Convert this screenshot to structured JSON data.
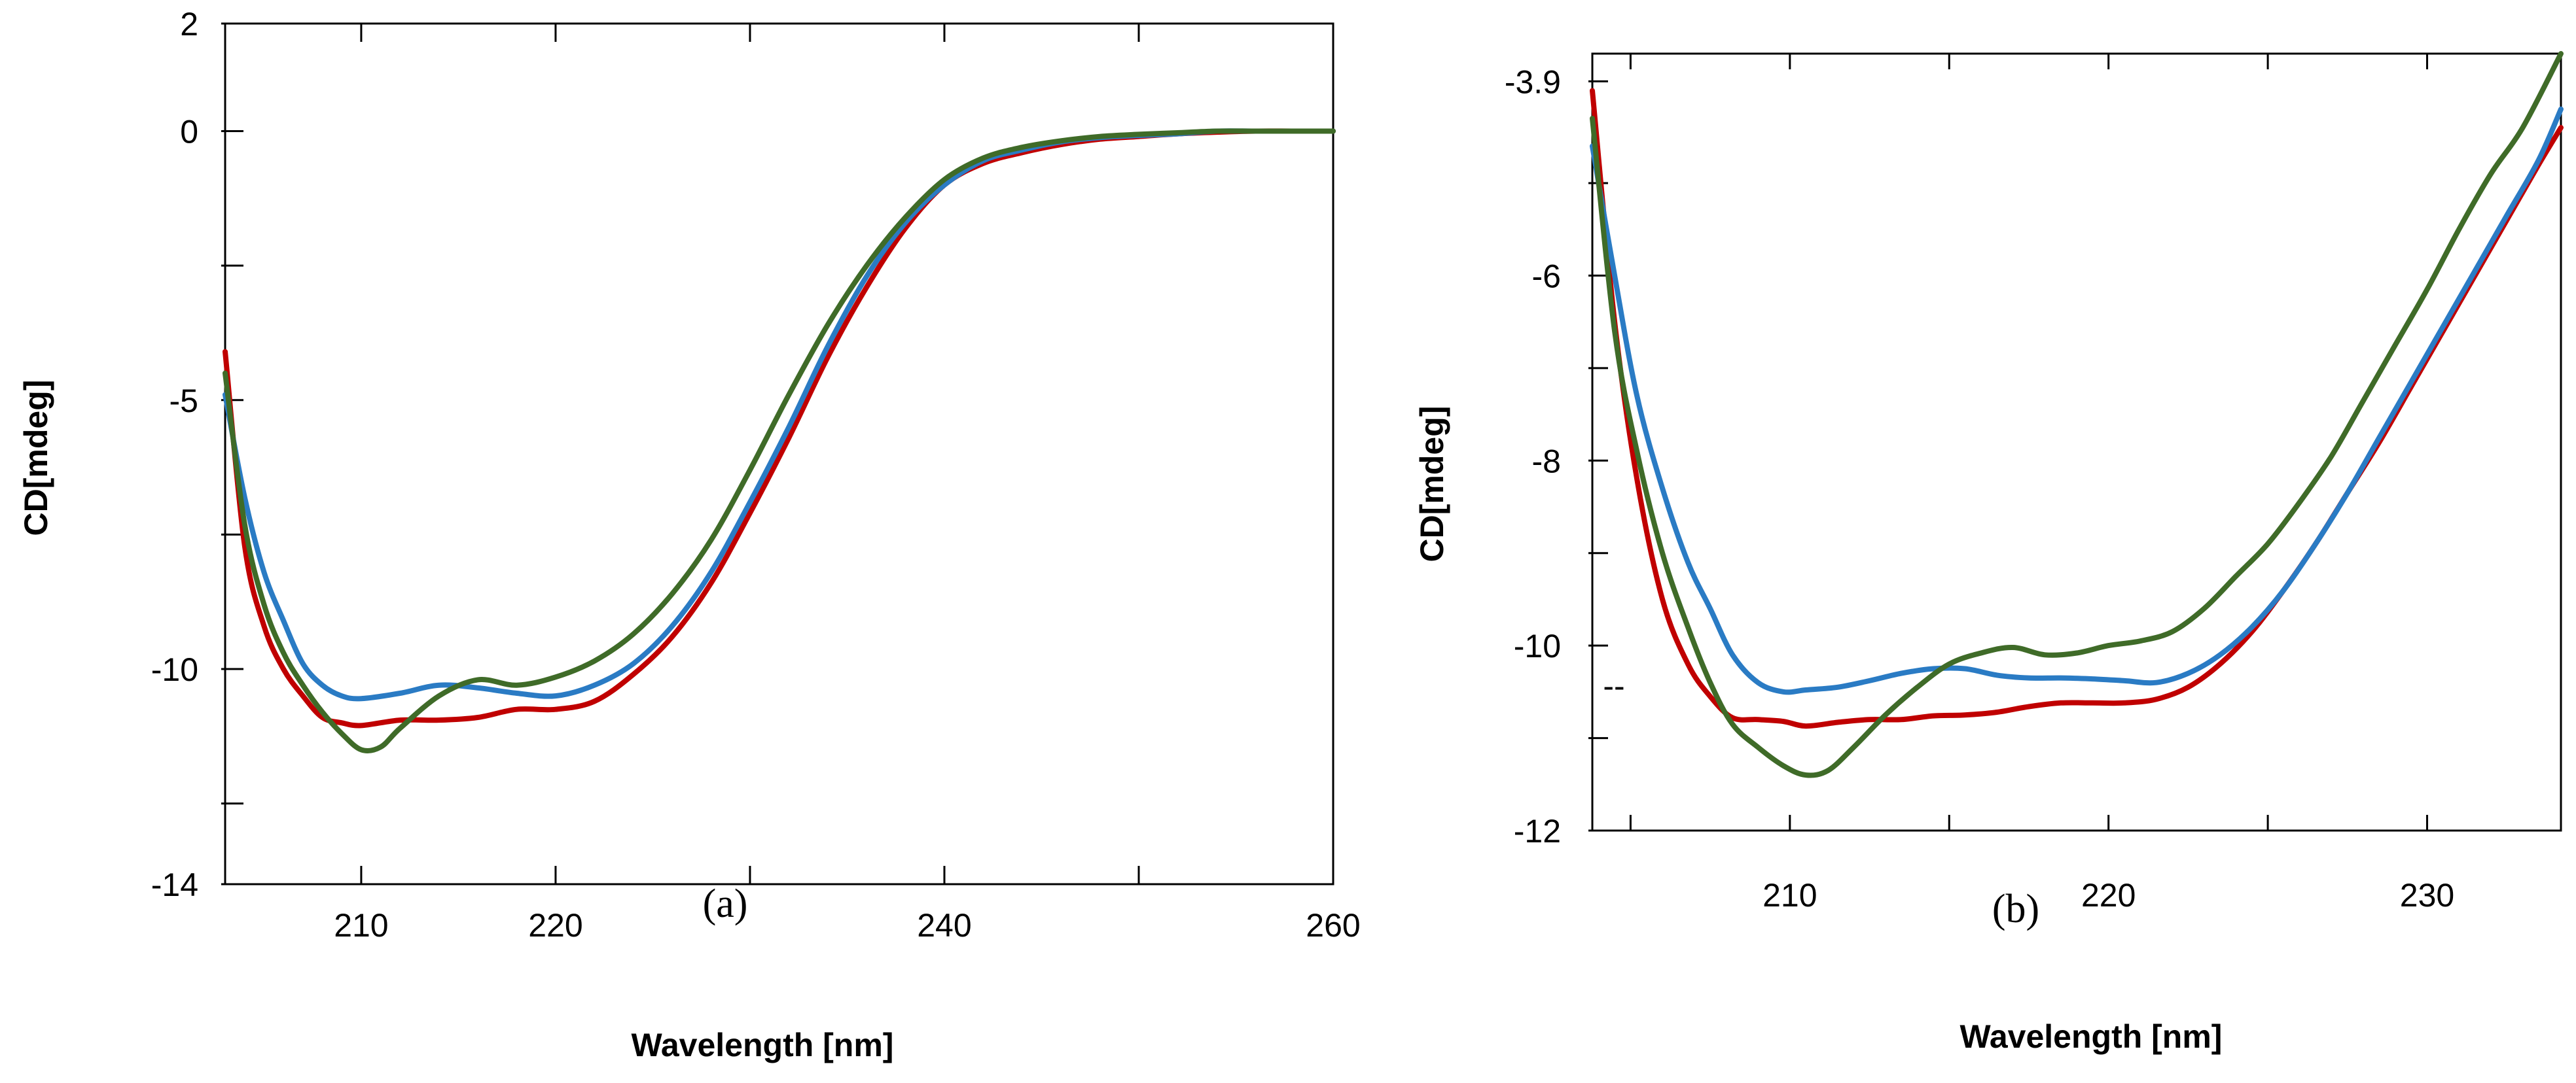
{
  "chart_data": [
    {
      "type": "line",
      "panel_label": "(a)",
      "xlabel": "Wavelength [nm]",
      "ylabel": "CD[mdeg]",
      "xlim": [
        203,
        260
      ],
      "ylim": [
        -14,
        2
      ],
      "x_ticks": [
        210,
        220,
        240,
        260
      ],
      "x_tick_labels": [
        "210",
        "220",
        "240",
        "260"
      ],
      "x_tick_marks": [
        210,
        220,
        230,
        240,
        250,
        260
      ],
      "y_ticks": [
        2,
        0,
        -5,
        -10,
        -14
      ],
      "y_tick_labels": [
        "2",
        "0",
        "-5",
        "-10",
        "-14"
      ],
      "y_tick_marks": [
        2,
        0,
        -2.5,
        -5,
        -7.5,
        -10,
        -12.5,
        -14
      ],
      "series": [
        {
          "name": "red",
          "color": "#c00000",
          "x": [
            203,
            204,
            205,
            206,
            207,
            208,
            209,
            210,
            212,
            214,
            216,
            218,
            220,
            222,
            224,
            226,
            228,
            230,
            232,
            234,
            236,
            238,
            240,
            242,
            244,
            246,
            248,
            250,
            252,
            254,
            256,
            258,
            260
          ],
          "y": [
            -4.1,
            -7.7,
            -9.2,
            -10.0,
            -10.5,
            -10.9,
            -11.0,
            -11.05,
            -10.95,
            -10.95,
            -10.9,
            -10.75,
            -10.75,
            -10.6,
            -10.1,
            -9.4,
            -8.4,
            -7.1,
            -5.7,
            -4.2,
            -2.9,
            -1.8,
            -1.0,
            -0.6,
            -0.4,
            -0.25,
            -0.15,
            -0.1,
            -0.05,
            -0.02,
            0.0,
            0.0,
            0.0
          ]
        },
        {
          "name": "blue",
          "color": "#2a7bc4",
          "x": [
            203,
            204,
            205,
            206,
            207,
            208,
            209,
            210,
            212,
            214,
            216,
            218,
            220,
            222,
            224,
            226,
            228,
            230,
            232,
            234,
            236,
            238,
            240,
            242,
            244,
            246,
            248,
            250,
            252,
            254,
            256,
            258,
            260
          ],
          "y": [
            -4.9,
            -6.8,
            -8.2,
            -9.1,
            -9.9,
            -10.3,
            -10.5,
            -10.55,
            -10.45,
            -10.3,
            -10.35,
            -10.45,
            -10.5,
            -10.3,
            -9.9,
            -9.2,
            -8.2,
            -6.9,
            -5.5,
            -4.0,
            -2.7,
            -1.7,
            -1.0,
            -0.55,
            -0.35,
            -0.2,
            -0.12,
            -0.08,
            -0.05,
            0.0,
            0.0,
            0.0,
            0.0
          ]
        },
        {
          "name": "green",
          "color": "#3f6b28",
          "x": [
            203,
            204,
            205,
            206,
            207,
            208,
            209,
            210,
            211,
            212,
            214,
            216,
            218,
            220,
            222,
            224,
            226,
            228,
            230,
            232,
            234,
            236,
            238,
            240,
            242,
            244,
            246,
            248,
            250,
            252,
            254,
            256,
            258,
            260
          ],
          "y": [
            -4.5,
            -7.3,
            -8.8,
            -9.7,
            -10.3,
            -10.8,
            -11.2,
            -11.5,
            -11.45,
            -11.1,
            -10.5,
            -10.2,
            -10.3,
            -10.15,
            -9.85,
            -9.35,
            -8.6,
            -7.6,
            -6.3,
            -4.9,
            -3.6,
            -2.5,
            -1.6,
            -0.9,
            -0.5,
            -0.3,
            -0.18,
            -0.1,
            -0.06,
            -0.03,
            0.0,
            0.0,
            0.0,
            0.0
          ]
        }
      ]
    },
    {
      "type": "line",
      "panel_label": "(b)",
      "xlabel": "Wavelength [nm]",
      "ylabel": "CD[mdeg]",
      "xlim": [
        203.8,
        234.2
      ],
      "ylim": [
        -12,
        -3.6
      ],
      "x_ticks": [
        210,
        220,
        230
      ],
      "x_tick_labels": [
        "210",
        "220",
        "230"
      ],
      "x_tick_marks": [
        205,
        210,
        215,
        220,
        225,
        230
      ],
      "y_ticks": [
        -3.9,
        -6,
        -8,
        -10,
        -12
      ],
      "y_tick_labels": [
        "-3.9",
        "-6",
        "-8",
        "-10",
        "-12"
      ],
      "y_tick_marks": [
        -3.9,
        -5,
        -6,
        -7,
        -8,
        -9,
        -10,
        -11,
        -12
      ],
      "series": [
        {
          "name": "red",
          "color": "#c00000",
          "x": [
            203.8,
            204.5,
            205.2,
            206,
            206.8,
            207.5,
            208.2,
            209,
            209.8,
            210.5,
            211.5,
            212.5,
            213.5,
            214.5,
            215.5,
            216.5,
            217.5,
            218.5,
            219.5,
            220.5,
            221.5,
            222.5,
            223.5,
            224.5,
            225.5,
            226.5,
            227.5,
            228.5,
            229.5,
            230.5,
            231.5,
            232.5,
            233.5,
            234.2
          ],
          "y": [
            -4.0,
            -6.5,
            -8.2,
            -9.5,
            -10.2,
            -10.55,
            -10.78,
            -10.8,
            -10.82,
            -10.87,
            -10.83,
            -10.8,
            -10.8,
            -10.76,
            -10.75,
            -10.72,
            -10.66,
            -10.62,
            -10.62,
            -10.62,
            -10.58,
            -10.45,
            -10.2,
            -9.85,
            -9.4,
            -8.9,
            -8.35,
            -7.8,
            -7.2,
            -6.6,
            -6.0,
            -5.4,
            -4.8,
            -4.4
          ]
        },
        {
          "name": "blue",
          "color": "#2a7bc4",
          "x": [
            203.8,
            204.5,
            205.2,
            206,
            206.8,
            207.5,
            208.2,
            209,
            209.8,
            210.5,
            211.5,
            212.5,
            213.5,
            214.5,
            215.5,
            216.5,
            217.5,
            218.5,
            219.5,
            220.5,
            221.5,
            222.5,
            223.5,
            224.5,
            225.5,
            226.5,
            227.5,
            228.5,
            229.5,
            230.5,
            231.5,
            232.5,
            233.5,
            234.2
          ],
          "y": [
            -4.6,
            -6.0,
            -7.3,
            -8.3,
            -9.1,
            -9.6,
            -10.1,
            -10.4,
            -10.5,
            -10.48,
            -10.45,
            -10.38,
            -10.3,
            -10.25,
            -10.25,
            -10.32,
            -10.35,
            -10.35,
            -10.36,
            -10.38,
            -10.4,
            -10.3,
            -10.1,
            -9.8,
            -9.4,
            -8.9,
            -8.35,
            -7.75,
            -7.15,
            -6.55,
            -5.95,
            -5.35,
            -4.75,
            -4.2
          ]
        },
        {
          "name": "green",
          "color": "#3f6b28",
          "x": [
            203.8,
            204.5,
            205.2,
            206,
            206.8,
            207.5,
            208.2,
            209,
            209.8,
            210.5,
            211.2,
            212,
            213,
            214,
            215,
            216,
            217,
            218,
            219,
            220,
            221,
            222,
            223,
            224,
            225,
            226,
            227,
            228,
            229,
            230,
            231,
            232,
            233,
            234.2
          ],
          "y": [
            -4.3,
            -6.6,
            -7.9,
            -9.0,
            -9.8,
            -10.4,
            -10.85,
            -11.1,
            -11.3,
            -11.4,
            -11.35,
            -11.1,
            -10.75,
            -10.45,
            -10.2,
            -10.08,
            -10.02,
            -10.1,
            -10.08,
            -10.0,
            -9.95,
            -9.85,
            -9.6,
            -9.25,
            -8.9,
            -8.45,
            -7.95,
            -7.35,
            -6.75,
            -6.15,
            -5.5,
            -4.9,
            -4.4,
            -3.6
          ]
        }
      ]
    }
  ]
}
